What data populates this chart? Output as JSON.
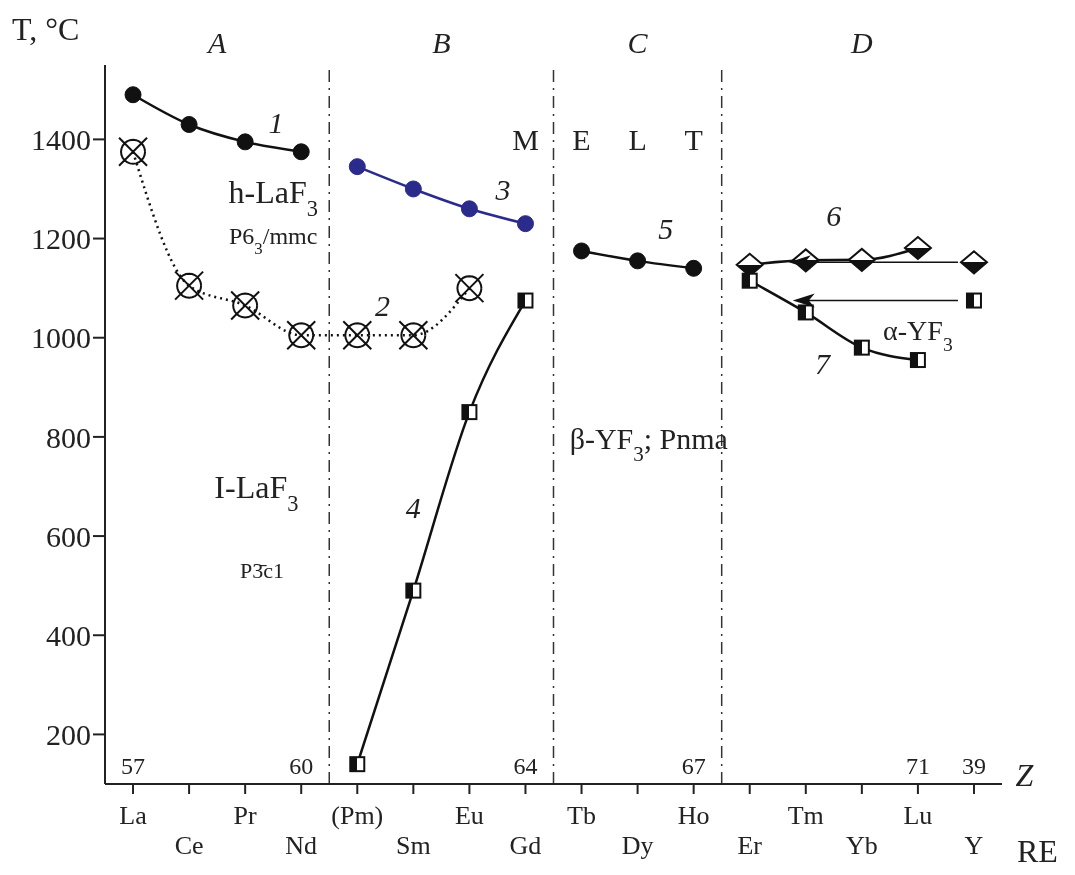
{
  "chart_data": {
    "type": "line",
    "ylabel": "T, °C",
    "xlabel": "RE",
    "categories": [
      "La",
      "Ce",
      "Pr",
      "Nd",
      "(Pm)",
      "Sm",
      "Eu",
      "Gd",
      "Tb",
      "Dy",
      "Ho",
      "Er",
      "Tm",
      "Yb",
      "Lu",
      "Y"
    ],
    "series": [
      {
        "color": "#111111",
        "marker": "circle",
        "line_style": "solid",
        "values": [
          1490,
          1430,
          1395,
          1375,
          null,
          null,
          null,
          null,
          null,
          null,
          null,
          null,
          null,
          null,
          null,
          null
        ]
      },
      {
        "color": "#111111",
        "marker": "cross",
        "line_style": "dotted",
        "values": [
          1375,
          1105,
          1065,
          1005,
          1005,
          1005,
          1100,
          null,
          null,
          null,
          null,
          null,
          null,
          null,
          null,
          null
        ]
      },
      {
        "color": "#2b2b8c",
        "marker": "circle",
        "line_style": "solid",
        "values": [
          null,
          null,
          null,
          null,
          1345,
          1300,
          1260,
          1230,
          null,
          null,
          null,
          null,
          null,
          null,
          null,
          null
        ]
      },
      {
        "color": "#111111",
        "marker": "square",
        "line_style": "solid",
        "values": [
          null,
          null,
          null,
          null,
          140,
          490,
          850,
          1075,
          null,
          null,
          null,
          null,
          null,
          null,
          null,
          null
        ]
      },
      {
        "color": "#111111",
        "marker": "circle",
        "line_style": "solid",
        "values": [
          null,
          null,
          null,
          null,
          null,
          null,
          null,
          null,
          1175,
          1155,
          1140,
          null,
          null,
          null,
          null,
          null
        ]
      },
      {
        "color": "#111111",
        "marker": "diamond",
        "line_style": "solid",
        "values": [
          null,
          null,
          null,
          null,
          null,
          null,
          null,
          null,
          null,
          null,
          null,
          1147,
          1156,
          1157,
          1181,
          null
        ]
      },
      {
        "type": "scatter",
        "color": "#111111",
        "marker": "diamond",
        "values": [
          null,
          null,
          null,
          null,
          null,
          null,
          null,
          null,
          null,
          null,
          null,
          null,
          null,
          null,
          null,
          1152
        ]
      },
      {
        "color": "#111111",
        "marker": "square",
        "line_style": "solid",
        "values": [
          null,
          null,
          null,
          null,
          null,
          null,
          null,
          null,
          null,
          null,
          null,
          1115,
          1051,
          980,
          955,
          null
        ]
      },
      {
        "type": "scatter",
        "color": "#111111",
        "marker": "square",
        "values": [
          null,
          null,
          null,
          null,
          null,
          null,
          null,
          null,
          null,
          null,
          null,
          null,
          null,
          null,
          null,
          1075
        ]
      }
    ],
    "ylim": [
      100,
      1550
    ],
    "yticks": [
      200,
      400,
      600,
      800,
      1000,
      1200,
      1400
    ],
    "grid": false,
    "annotations": [
      "A",
      "B",
      "C",
      "D",
      "Z",
      "1",
      "2",
      "3",
      "4",
      "5",
      {
        "text": "6",
        "x": "Tm",
        "y": 1156
      },
      "7",
      "h-LaF$_{3}$",
      "P6$_{3}$/mmc",
      "I-LaF$_{3}$",
      "P3̄c1",
      "β-YF$_{3}$; Pnma",
      "α-YF$_{3}$",
      "M",
      "E",
      "L",
      "T",
      "57",
      "60",
      "64",
      "67",
      "71",
      "39"
    ]
  }
}
